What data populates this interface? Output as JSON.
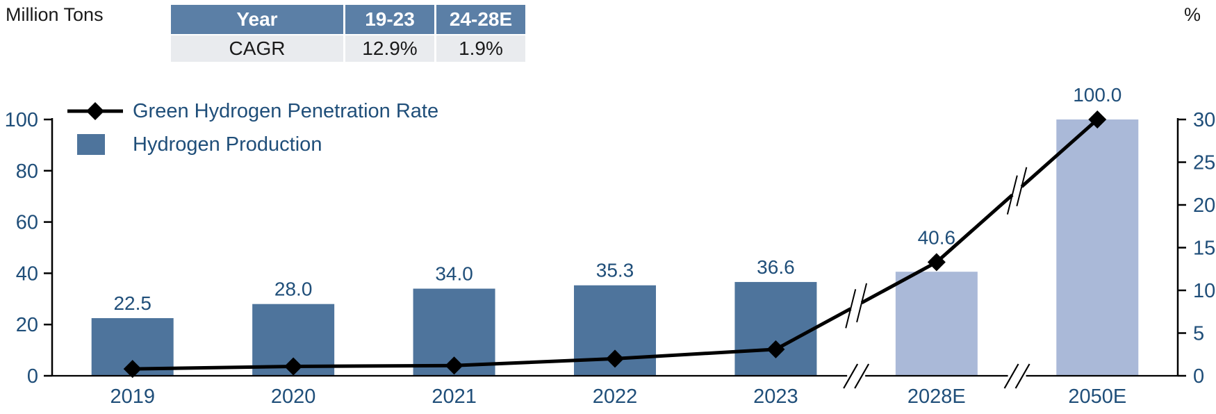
{
  "page": {
    "left_unit_label": "Million Tons",
    "right_unit_label": "%"
  },
  "colors": {
    "header-bg": "#5b7fa6",
    "row-bg": "#e9ebee",
    "text-blue": "#1f4e79",
    "bar-dark": "#4e749c",
    "bar-light": "#aab9d8",
    "line-black": "#000000",
    "axis-black": "#000000"
  },
  "table": {
    "headers": [
      "Year",
      "19-23",
      "24-28E"
    ],
    "rows": [
      [
        "CAGR",
        "12.9%",
        "1.9%"
      ]
    ]
  },
  "chart_data": {
    "type": "bar+line combo",
    "categories": [
      "2019",
      "2020",
      "2021",
      "2022",
      "2023",
      "2028E",
      "2050E"
    ],
    "series": [
      {
        "name": "Hydrogen Production",
        "type": "bar",
        "axis": "left",
        "values": [
          22.5,
          28.0,
          34.0,
          35.3,
          36.6,
          40.6,
          100.0
        ],
        "labels": [
          "22.5",
          "28.0",
          "34.0",
          "35.3",
          "36.6",
          "40.6",
          "100.0"
        ],
        "forecast_from_index": 5
      },
      {
        "name": "Green Hydrogen Penetration Rate",
        "type": "line",
        "axis": "right",
        "marker": "diamond",
        "values": [
          0.8,
          1.1,
          1.2,
          2.0,
          3.1,
          13.3,
          30.0
        ],
        "values_note": "estimated from marker positions; not labeled in chart"
      }
    ],
    "left_axis": {
      "unit": "Million Tons",
      "min": 0,
      "max": 100,
      "step": 20,
      "ticks": [
        "0",
        "20",
        "40",
        "60",
        "80",
        "100"
      ]
    },
    "right_axis": {
      "unit": "%",
      "min": 0,
      "max": 30,
      "step": 5,
      "ticks": [
        "0",
        "5",
        "10",
        "15",
        "20",
        "25",
        "30"
      ]
    },
    "axis_breaks": {
      "after_category_indices": [
        4,
        5
      ],
      "between": [
        [
          "2023",
          "2028E"
        ],
        [
          "2028E",
          "2050E"
        ]
      ]
    },
    "grid": "off",
    "legend_position": "top-left-inside"
  }
}
